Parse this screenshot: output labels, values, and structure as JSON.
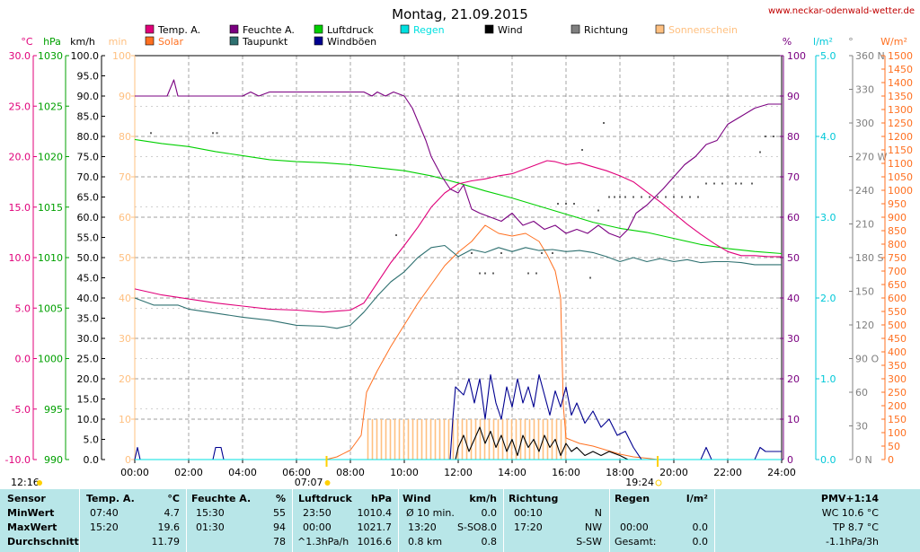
{
  "title": "Montag, 21.09.2015",
  "site": "www.neckar-odenwald-wetter.de",
  "colors": {
    "temp": "#e0007a",
    "feuchte": "#7a0080",
    "luftdruck": "#00d000",
    "regen": "#00e0e0",
    "wind": "#000000",
    "richtung": "#606060",
    "sonne": "#ffc080",
    "solar": "#ff7020",
    "taupunkt": "#2e7070",
    "windboeen": "#000090",
    "axis_temp": "#e0007a",
    "axis_hpa": "#00a000",
    "axis_kmh": "#000000",
    "axis_min": "#ffc080",
    "axis_pct": "#7a0080",
    "axis_rain": "#00c8d8",
    "axis_dir": "#808080",
    "axis_wm2": "#ff7020"
  },
  "legend": [
    {
      "label": "Temp. A.",
      "color": "#e0007a"
    },
    {
      "label": "Feuchte A.",
      "color": "#7a0080"
    },
    {
      "label": "Luftdruck",
      "color": "#00d000"
    },
    {
      "label": "Regen",
      "color": "#00e0e0"
    },
    {
      "label": "Wind",
      "color": "#000000"
    },
    {
      "label": "Richtung",
      "color": "#808080"
    },
    {
      "label": "Sonnenschein",
      "color": "#ffc080"
    },
    {
      "label": "Solar",
      "color": "#ff7020"
    },
    {
      "label": "Taupunkt",
      "color": "#2e7070"
    },
    {
      "label": "Windböen",
      "color": "#000090"
    }
  ],
  "axes": {
    "units": {
      "temp": "°C",
      "hpa": "hPa",
      "kmh": "km/h",
      "min": "min",
      "pct": "%",
      "rain": "l/m²",
      "dir": "°",
      "wm2": "W/m²"
    },
    "temp": [
      "30.0",
      "25.0",
      "20.0",
      "15.0",
      "10.0",
      "5.0",
      "0.0",
      "-5.0",
      "-10.0"
    ],
    "hpa": [
      "1030",
      "1025",
      "1020",
      "1015",
      "1010",
      "1005",
      "1000",
      "995",
      "990"
    ],
    "kmh": [
      "100.0",
      "95.0",
      "90.0",
      "85.0",
      "80.0",
      "75.0",
      "70.0",
      "65.0",
      "60.0",
      "55.0",
      "50.0",
      "45.0",
      "40.0",
      "35.0",
      "30.0",
      "25.0",
      "20.0",
      "15.0",
      "10.0",
      "5.0",
      "0.0"
    ],
    "min": [
      "100",
      "90",
      "80",
      "70",
      "60",
      "50",
      "40",
      "30",
      "20",
      "10",
      "0"
    ],
    "pct": [
      "100",
      "90",
      "80",
      "70",
      "60",
      "50",
      "40",
      "30",
      "20",
      "10",
      "0"
    ],
    "rain": [
      "5.0",
      "4.0",
      "3.0",
      "2.0",
      "1.0",
      "0.0"
    ],
    "dir": [
      "360 N",
      "330",
      "300",
      "270 W",
      "240",
      "210",
      "180 S",
      "150",
      "120",
      "90 O",
      "60",
      "30",
      "0 N"
    ],
    "wm2": [
      "1500",
      "1450",
      "1400",
      "1350",
      "1300",
      "1250",
      "1200",
      "1150",
      "1100",
      "1050",
      "1000",
      "950",
      "900",
      "850",
      "800",
      "750",
      "700",
      "650",
      "600",
      "550",
      "500",
      "450",
      "400",
      "350",
      "300",
      "250",
      "200",
      "150",
      "100",
      "50",
      "0"
    ],
    "time": [
      "00:00",
      "02:00",
      "04:00",
      "06:00",
      "08:00",
      "10:00",
      "12:00",
      "14:00",
      "16:00",
      "18:00",
      "20:00",
      "22:00",
      "24:00"
    ]
  },
  "sun_markers": {
    "culmination": "12:16",
    "sunrise": "07:07",
    "sunset": "19:24"
  },
  "chart_data": {
    "type": "line",
    "title": "Montag, 21.09.2015",
    "x_unit": "h",
    "xlim": [
      0,
      24
    ],
    "series": [
      {
        "name": "Feuchte A.",
        "unit": "%",
        "ylim": [
          0,
          100
        ],
        "x": [
          0,
          1.2,
          1.45,
          1.6,
          4,
          4.3,
          4.6,
          5,
          7,
          8.5,
          8.8,
          9,
          9.3,
          9.6,
          10,
          10.3,
          10.8,
          11,
          11.4,
          11.7,
          12,
          12.2,
          12.5,
          12.8,
          13.2,
          13.6,
          14,
          14.4,
          14.8,
          15.2,
          15.6,
          16,
          16.4,
          16.8,
          17.2,
          17.6,
          18,
          18.3,
          18.6,
          19,
          19.3,
          19.6,
          20,
          20.4,
          20.8,
          21.2,
          21.6,
          22,
          22.5,
          23,
          23.5,
          24
        ],
        "y": [
          90,
          90,
          94,
          90,
          90,
          91,
          90,
          91,
          91,
          91,
          90,
          91,
          90,
          91,
          90,
          87,
          79,
          75,
          70,
          67,
          66,
          68,
          62,
          61,
          60,
          59,
          61,
          58,
          59,
          57,
          58,
          56,
          57,
          56,
          58,
          56,
          55,
          57,
          61,
          63,
          65,
          67,
          70,
          73,
          75,
          78,
          79,
          83,
          85,
          87,
          88,
          88
        ]
      },
      {
        "name": "Temp. A.",
        "unit": "°C",
        "ylim": [
          -10,
          30
        ],
        "x": [
          0,
          1,
          2,
          3,
          4,
          5,
          6,
          7,
          7.5,
          8,
          8.5,
          9,
          9.5,
          10,
          10.5,
          11,
          11.5,
          12,
          12.5,
          13,
          13.5,
          14,
          14.5,
          15,
          15.3,
          15.6,
          16,
          16.5,
          17,
          17.5,
          18,
          18.5,
          19,
          19.5,
          20,
          20.5,
          21,
          21.5,
          22,
          22.5,
          23,
          23.5,
          24
        ],
        "y": [
          6.9,
          6.3,
          5.9,
          5.5,
          5.2,
          4.9,
          4.8,
          4.6,
          4.7,
          4.8,
          5.5,
          7.5,
          9.5,
          11.2,
          13,
          15,
          16.4,
          17.3,
          17.6,
          17.8,
          18.1,
          18.3,
          18.8,
          19.3,
          19.6,
          19.5,
          19.2,
          19.4,
          19,
          18.6,
          18.1,
          17.5,
          16.5,
          15.5,
          14.4,
          13.3,
          12.3,
          11.4,
          10.6,
          10.2,
          10.2,
          10.1,
          10.1
        ]
      },
      {
        "name": "Luftdruck",
        "unit": "hPa",
        "ylim": [
          990,
          1030
        ],
        "x": [
          0,
          1,
          2,
          3,
          4,
          5,
          6,
          7,
          8,
          9,
          10,
          11,
          12,
          13,
          14,
          15,
          16,
          17,
          18,
          19,
          20,
          21,
          22,
          23,
          24
        ],
        "y": [
          1021.7,
          1021.3,
          1021.0,
          1020.5,
          1020.1,
          1019.7,
          1019.5,
          1019.4,
          1019.2,
          1018.9,
          1018.6,
          1018.1,
          1017.4,
          1016.6,
          1015.9,
          1015.1,
          1014.3,
          1013.5,
          1012.9,
          1012.5,
          1011.9,
          1011.3,
          1010.9,
          1010.6,
          1010.4
        ]
      },
      {
        "name": "Taupunkt",
        "unit": "°C",
        "ylim": [
          -10,
          30
        ],
        "x": [
          0,
          0.7,
          1.6,
          2,
          3,
          4,
          5,
          6,
          7,
          7.5,
          8,
          8.5,
          9,
          9.5,
          10,
          10.5,
          11,
          11.5,
          12,
          12.5,
          13,
          13.5,
          14,
          14.5,
          15,
          15.5,
          16,
          16.5,
          17,
          17.5,
          18,
          18.5,
          19,
          19.5,
          20,
          20.5,
          21,
          21.5,
          22,
          22.5,
          23,
          23.5,
          24
        ],
        "y": [
          6,
          5.3,
          5.3,
          4.9,
          4.5,
          4.1,
          3.8,
          3.3,
          3.2,
          3.0,
          3.3,
          4.6,
          6.2,
          7.6,
          8.6,
          10.0,
          11.0,
          11.2,
          10.1,
          10.8,
          10.5,
          11.0,
          10.6,
          11.0,
          10.7,
          10.8,
          10.6,
          10.7,
          10.5,
          10.1,
          9.6,
          10.0,
          9.6,
          9.9,
          9.6,
          9.8,
          9.5,
          9.6,
          9.6,
          9.5,
          9.3,
          9.3,
          9.3
        ]
      },
      {
        "name": "Solar",
        "unit": "W/m²",
        "ylim": [
          0,
          1500
        ],
        "x": [
          0,
          7.1,
          7.5,
          8,
          8.4,
          8.6,
          9,
          9.5,
          10,
          10.5,
          11,
          11.5,
          12,
          12.5,
          13,
          13.5,
          14,
          14.5,
          15,
          15.3,
          15.6,
          15.8,
          15.9,
          16,
          16.5,
          17,
          17.5,
          18,
          18.5,
          19,
          19.4,
          24
        ],
        "y": [
          0,
          0,
          10,
          35,
          90,
          250,
          330,
          420,
          500,
          580,
          650,
          720,
          770,
          810,
          870,
          840,
          830,
          840,
          810,
          760,
          700,
          600,
          200,
          80,
          60,
          50,
          35,
          20,
          10,
          5,
          0,
          0
        ]
      },
      {
        "name": "Windböen",
        "unit": "km/h",
        "ylim": [
          0,
          100
        ],
        "x": [
          0,
          0.1,
          0.2,
          2.9,
          3,
          3.2,
          3.3,
          11.7,
          11.8,
          11.9,
          12.2,
          12.4,
          12.6,
          12.8,
          13,
          13.2,
          13.4,
          13.6,
          13.8,
          14,
          14.2,
          14.4,
          14.6,
          14.8,
          15,
          15.2,
          15.4,
          15.6,
          15.8,
          16,
          16.2,
          16.4,
          16.7,
          17,
          17.3,
          17.6,
          17.9,
          18.2,
          18.5,
          18.8,
          21,
          21.2,
          21.4,
          23,
          23.2,
          23.4,
          24
        ],
        "y": [
          0,
          3,
          0,
          0,
          3,
          3,
          0,
          0,
          10,
          18,
          16,
          20,
          14,
          20,
          10,
          21,
          14,
          10,
          18,
          13,
          20,
          14,
          18,
          13,
          21,
          16,
          11,
          17,
          13,
          18,
          11,
          14,
          9,
          12,
          8,
          10,
          6,
          7,
          3,
          0,
          0,
          3,
          0,
          0,
          3,
          2,
          2
        ]
      },
      {
        "name": "Wind",
        "unit": "km/h",
        "ylim": [
          0,
          100
        ],
        "x": [
          0,
          11.9,
          12,
          12.2,
          12.4,
          12.6,
          12.8,
          13,
          13.2,
          13.4,
          13.6,
          13.8,
          14,
          14.2,
          14.4,
          14.6,
          14.8,
          15,
          15.2,
          15.4,
          15.6,
          15.8,
          16,
          16.2,
          16.4,
          16.7,
          17,
          17.3,
          17.6,
          18,
          18.3,
          18.6,
          24
        ],
        "y": [
          0,
          0,
          3,
          6,
          2,
          5,
          8,
          4,
          7,
          3,
          6,
          2,
          5,
          1,
          6,
          3,
          5,
          2,
          6,
          3,
          5,
          1,
          4,
          2,
          3,
          1,
          2,
          1,
          2,
          1,
          0,
          0,
          0
        ]
      },
      {
        "name": "Sonnenschein",
        "unit": "min",
        "ylim": [
          0,
          100
        ],
        "x": [
          8.65,
          16.0
        ],
        "y": [
          10,
          10
        ]
      },
      {
        "name": "Regen",
        "unit": "l/m²",
        "ylim": [
          0,
          5
        ],
        "x": [
          0,
          24
        ],
        "y": [
          0,
          0
        ]
      }
    ],
    "richtung": {
      "name": "Richtung",
      "unit": "°",
      "x": [
        0.6,
        2.9,
        3.05,
        9.7,
        12.5,
        12.8,
        13.0,
        13.3,
        13.6,
        14.6,
        14.9,
        15.1,
        15.5,
        15.7,
        16.0,
        16.3,
        16.6,
        16.9,
        17.2,
        17.4,
        17.6,
        17.8,
        18.0,
        18.2,
        18.5,
        18.8,
        19.1,
        19.4,
        19.7,
        20.0,
        20.3,
        20.6,
        20.9,
        21.2,
        21.5,
        21.8,
        22.3,
        22.5,
        22.9,
        23.2,
        23.4,
        23.7
      ],
      "y": [
        291,
        291,
        291,
        200,
        184,
        166,
        166,
        166,
        184,
        166,
        166,
        184,
        184,
        228,
        228,
        228,
        276,
        162,
        222,
        300,
        234,
        234,
        234,
        234,
        234,
        234,
        234,
        234,
        234,
        234,
        234,
        234,
        234,
        246,
        246,
        246,
        246,
        246,
        246,
        274,
        288,
        288
      ]
    }
  },
  "stats": {
    "headers": {
      "sensor": "Sensor",
      "temp": "Temp. A.",
      "temp_unit": "°C",
      "feuchte": "Feuchte A.",
      "feuchte_unit": "%",
      "druck": "Luftdruck",
      "druck_unit": "hPa",
      "wind": "Wind",
      "wind_unit": "km/h",
      "richtung": "Richtung",
      "regen": "Regen",
      "regen_unit": "l/m²",
      "pmv": "PMV+1:14"
    },
    "min": {
      "label": "MinWert",
      "temp_t": "07:40",
      "temp_v": "4.7",
      "feu_t": "15:30",
      "feu_v": "55",
      "dru_t": "23:50",
      "dru_v": "1010.4",
      "wind_t": "Ø 10 min.",
      "wind_v": "0.0",
      "ri_t": "00:10",
      "ri_v": "N",
      "reg_t": "",
      "reg_v": "",
      "pmv": "WC 10.6 °C"
    },
    "max": {
      "label": "MaxWert",
      "temp_t": "15:20",
      "temp_v": "19.6",
      "feu_t": "01:30",
      "feu_v": "94",
      "dru_t": "00:00",
      "dru_v": "1021.7",
      "wind_t": "13:20",
      "wind_m": "S-SO",
      "wind_v": "8.0",
      "ri_t": "17:20",
      "ri_v": "NW",
      "reg_t": "00:00",
      "reg_v": "0.0",
      "pmv": "TP 8.7 °C"
    },
    "avg": {
      "label": "Durchschnitt",
      "temp_v": "11.79",
      "feu_v": "78",
      "dru_t": "^1.3hPa/h",
      "dru_v": "1016.6",
      "wind_t": "0.8 km",
      "wind_v": "0.8",
      "ri_v": "S-SW",
      "reg_t": "Gesamt:",
      "reg_v": "0.0",
      "pmv": "-1.1hPa/3h"
    }
  }
}
